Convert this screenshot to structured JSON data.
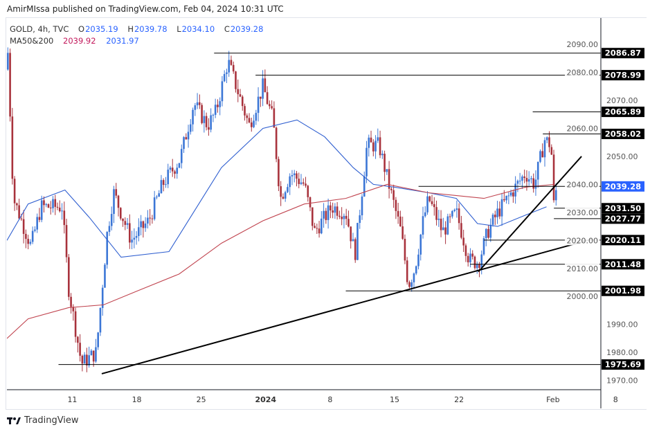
{
  "header": {
    "published": "AmirMIssa published on TradingView.com, Feb 04, 2024 10:31 UTC"
  },
  "legend": {
    "symbol": "GOLD, 4h, TVC",
    "o_label": "O",
    "o": "2035.19",
    "h_label": "H",
    "h": "2039.78",
    "l_label": "L",
    "l": "2034.10",
    "c_label": "C",
    "c": "2039.28",
    "ma_label": "MA50&200",
    "ma50": "2039.92",
    "ma200": "2031.97"
  },
  "footer": {
    "brand": "TradingView"
  },
  "colors": {
    "up": "#3b76d6",
    "down": "#a8323c",
    "ma50": "#2f5fd0",
    "ma200": "#c0434e",
    "last": "#2962ff",
    "label_bg": "#000000"
  },
  "chart_data": {
    "type": "candlestick",
    "title": "GOLD, 4h, TVC",
    "x_unit": "days since Dec 11, 2023",
    "xlim": [
      -7.1,
      57.4
    ],
    "ylim": [
      1966.7,
      2099.4
    ],
    "y_ticks": [
      "2090.00",
      "2080.00",
      "2070.00",
      "2060.00",
      "2050.00",
      "2040.00",
      "2030.00",
      "2020.00",
      "2010.00",
      "2000.00",
      "1990.00",
      "1980.00",
      "1970.00"
    ],
    "x_ticks": [
      {
        "day": 0,
        "label": "11"
      },
      {
        "day": 7,
        "label": "18"
      },
      {
        "day": 14,
        "label": "25"
      },
      {
        "day": 21,
        "label": "2024"
      },
      {
        "day": 28,
        "label": "8"
      },
      {
        "day": 35,
        "label": "15"
      },
      {
        "day": 42,
        "label": "22"
      },
      {
        "day": 52.2,
        "label": "Feb"
      },
      {
        "day": 59,
        "label": "8"
      }
    ],
    "price_path": [
      [
        -7.0,
        2087
      ],
      [
        -6.4,
        2035
      ],
      [
        -4.5,
        2018
      ],
      [
        -3.4,
        2032
      ],
      [
        -1.1,
        2032
      ],
      [
        -0.4,
        2003
      ],
      [
        1.0,
        1976
      ],
      [
        2.6,
        1980
      ],
      [
        3.8,
        2023
      ],
      [
        4.5,
        2037
      ],
      [
        6.4,
        2020
      ],
      [
        8.3,
        2027
      ],
      [
        9.8,
        2040
      ],
      [
        11.7,
        2049
      ],
      [
        13.2,
        2069
      ],
      [
        14.7,
        2061
      ],
      [
        15.6,
        2066
      ],
      [
        16.9,
        2084
      ],
      [
        18.0,
        2073
      ],
      [
        19.2,
        2061
      ],
      [
        20.7,
        2075
      ],
      [
        21.8,
        2063
      ],
      [
        22.6,
        2035
      ],
      [
        23.7,
        2044
      ],
      [
        25.2,
        2040
      ],
      [
        26.3,
        2023
      ],
      [
        28.2,
        2032
      ],
      [
        29.7,
        2030
      ],
      [
        30.7,
        2015
      ],
      [
        32.0,
        2054
      ],
      [
        33.3,
        2054
      ],
      [
        34.6,
        2037
      ],
      [
        35.7,
        2023
      ],
      [
        36.5,
        2004
      ],
      [
        37.2,
        2010
      ],
      [
        38.1,
        2027
      ],
      [
        38.7,
        2035
      ],
      [
        40.2,
        2023
      ],
      [
        41.7,
        2030
      ],
      [
        43.1,
        2013
      ],
      [
        44.1,
        2012
      ],
      [
        45.1,
        2023
      ],
      [
        46.2,
        2030
      ],
      [
        47.7,
        2037
      ],
      [
        49.2,
        2044
      ],
      [
        50.2,
        2040
      ],
      [
        51.3,
        2056
      ],
      [
        52.0,
        2054
      ],
      [
        52.3,
        2032
      ],
      [
        52.6,
        2039.28
      ]
    ],
    "ma50": [
      [
        -7.1,
        2020
      ],
      [
        -4.8,
        2033
      ],
      [
        -0.8,
        2038
      ],
      [
        1.9,
        2028
      ],
      [
        5.3,
        2014
      ],
      [
        10.5,
        2016
      ],
      [
        12.4,
        2026
      ],
      [
        16.2,
        2046
      ],
      [
        20.7,
        2060
      ],
      [
        24.4,
        2063
      ],
      [
        27.4,
        2057
      ],
      [
        30.5,
        2046
      ],
      [
        32.7,
        2040
      ],
      [
        35.0,
        2039
      ],
      [
        38.7,
        2037
      ],
      [
        41.7,
        2035
      ],
      [
        44.0,
        2026
      ],
      [
        46.2,
        2025
      ],
      [
        49.2,
        2029
      ],
      [
        51.5,
        2032
      ]
    ],
    "ma200": [
      [
        -7.1,
        1985
      ],
      [
        -4.8,
        1992
      ],
      [
        -0.4,
        1996
      ],
      [
        3.4,
        1997
      ],
      [
        7.1,
        2002
      ],
      [
        11.6,
        2008
      ],
      [
        16.2,
        2019
      ],
      [
        20.7,
        2027
      ],
      [
        25.2,
        2033
      ],
      [
        29.7,
        2035
      ],
      [
        34.2,
        2040
      ],
      [
        38.7,
        2037
      ],
      [
        44.7,
        2035
      ],
      [
        49.2,
        2039
      ],
      [
        52.3,
        2040
      ]
    ],
    "horizontal_levels": [
      {
        "price": 2086.87,
        "label": "2086.87",
        "from_day": 15.4
      },
      {
        "price": 2078.99,
        "label": "2078.99",
        "from_day": 19.9
      },
      {
        "price": 2065.89,
        "label": "2065.89",
        "from_day": 50.0
      },
      {
        "price": 2058.02,
        "label": "2058.02",
        "from_day": 51.1
      },
      {
        "price": 2039.28,
        "label": "2039.28",
        "from_day": 37.6,
        "last": true
      },
      {
        "price": 2031.5,
        "label": "2031.50",
        "from_day": 52.3
      },
      {
        "price": 2027.77,
        "label": "2027.77",
        "from_day": 52.3
      },
      {
        "price": 2020.11,
        "label": "2020.11",
        "from_day": 44.7
      },
      {
        "price": 2011.48,
        "label": "2011.48",
        "from_day": 43.2
      },
      {
        "price": 2001.98,
        "label": "2001.98",
        "from_day": 29.7
      },
      {
        "price": 1975.69,
        "label": "1975.69",
        "from_day": -1.5
      }
    ],
    "trendlines": [
      [
        [
          3.2,
          1972.4
        ],
        [
          56.4,
          2020.4
        ]
      ],
      [
        [
          44.1,
          2008.8
        ],
        [
          55.3,
          2050.0
        ]
      ]
    ]
  }
}
